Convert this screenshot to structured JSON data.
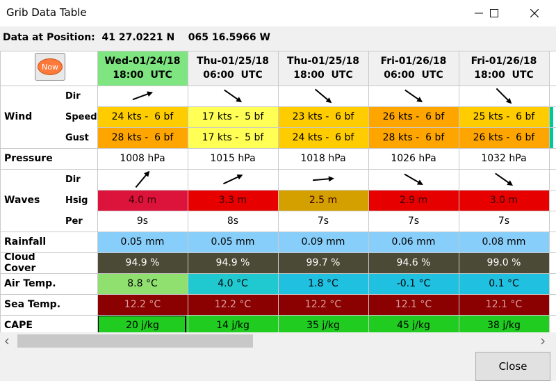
{
  "window": {
    "title": "Grib Data Table"
  },
  "position": {
    "label": "Data at Position:",
    "lat": "41 27.0221 N",
    "lon": "065 16.5966 W"
  },
  "now_button": {
    "label": "Now"
  },
  "columns": [
    {
      "day": "Wed-01/24/18",
      "time": "18:00  UTC"
    },
    {
      "day": "Thu-01/25/18",
      "time": "06:00  UTC"
    },
    {
      "day": "Thu-01/25/18",
      "time": "18:00  UTC"
    },
    {
      "day": "Fri-01/26/18",
      "time": "06:00  UTC"
    },
    {
      "day": "Fri-01/26/18",
      "time": "18:00  UTC"
    }
  ],
  "labels": {
    "wind": "Wind",
    "dir": "Dir",
    "speed": "Speed",
    "gust": "Gust",
    "pressure": "Pressure",
    "waves": "Waves",
    "hsig": "Hsig",
    "per": "Per",
    "rainfall": "Rainfall",
    "cloud_cover": "Cloud Cover",
    "air_temp": "Air Temp.",
    "sea_temp": "Sea Temp.",
    "cape": "CAPE"
  },
  "rows": {
    "wind_dir_deg": [
      250,
      305,
      310,
      305,
      315
    ],
    "wind_speed": [
      "24 kts -  6 bf",
      "17 kts -  5 bf",
      "23 kts -  6 bf",
      "26 kts -  6 bf",
      "25 kts -  6 bf"
    ],
    "wind_speed_colors": [
      "#ffcc00",
      "#ffff55",
      "#ffcc00",
      "#ffa500",
      "#ffcc00"
    ],
    "wind_gust": [
      "28 kts -  6 bf",
      "17 kts -  5 bf",
      "24 kts -  6 bf",
      "28 kts -  6 bf",
      "26 kts -  6 bf"
    ],
    "wind_gust_colors": [
      "#ffa500",
      "#ffff55",
      "#ffcc00",
      "#ffa500",
      "#ffa500"
    ],
    "pressure": [
      "1008 hPa",
      "1015 hPa",
      "1018 hPa",
      "1026 hPa",
      "1032 hPa"
    ],
    "waves_dir_deg": [
      220,
      245,
      265,
      300,
      305
    ],
    "waves_hsig": [
      "4.0 m",
      "3.3 m",
      "2.5 m",
      "2.9 m",
      "3.0 m"
    ],
    "waves_hsig_colors": [
      "#dc143c",
      "#e60000",
      "#d4a000",
      "#e60000",
      "#e60000"
    ],
    "waves_per": [
      "9s",
      "8s",
      "7s",
      "7s",
      "7s"
    ],
    "rainfall": [
      "0.05 mm",
      "0.05 mm",
      "0.09 mm",
      "0.06 mm",
      "0.08 mm"
    ],
    "rainfall_color": "#87cefa",
    "cloud_cover": [
      "94.9 %",
      "94.9 %",
      "99.7 %",
      "94.6 %",
      "99.0 %"
    ],
    "cloud_cover_color": "#4a4a36",
    "air_temp": [
      "8.8 °C",
      "4.0 °C",
      "1.8 °C",
      "-0.1 °C",
      "0.1 °C"
    ],
    "air_temp_colors": [
      "#90e070",
      "#20c8d0",
      "#20c0e0",
      "#20c0e0",
      "#20c0e0"
    ],
    "sea_temp": [
      "12.2 °C",
      "12.2 °C",
      "12.2 °C",
      "12.1 °C",
      "12.1 °C"
    ],
    "sea_temp_color": "#8b0000",
    "cape": [
      "20 j/kg",
      "14 j/kg",
      "35 j/kg",
      "45 j/kg",
      "38 j/kg"
    ],
    "cape_color": "#20cc20"
  },
  "footer": {
    "close_label": "Close"
  },
  "colors": {
    "now_header": "#7ee580",
    "accent_edge": "#00c896"
  }
}
